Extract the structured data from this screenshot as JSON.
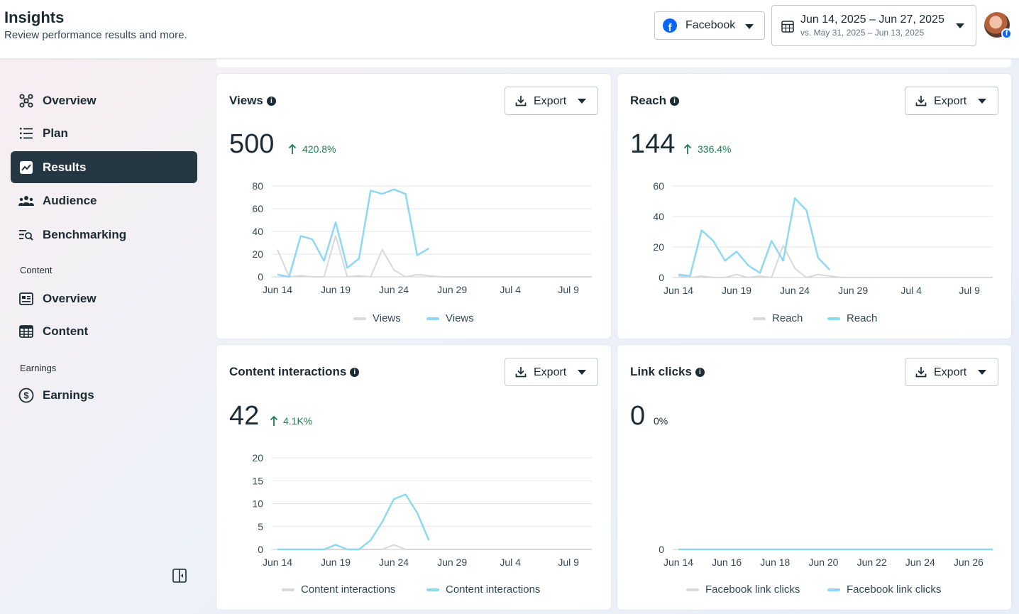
{
  "header": {
    "title": "Insights",
    "subtitle": "Review performance results and more.",
    "platform_select": "Facebook",
    "date_range": "Jun 14, 2025 – Jun 27, 2025",
    "compare_range": "vs. May 31, 2025 – Jun 13, 2025"
  },
  "sidebar": {
    "items": [
      {
        "label": "Overview",
        "icon": "overview-icon"
      },
      {
        "label": "Plan",
        "icon": "list-icon"
      },
      {
        "label": "Results",
        "icon": "trend-icon",
        "active": true
      },
      {
        "label": "Audience",
        "icon": "people-icon"
      },
      {
        "label": "Benchmarking",
        "icon": "benchmark-icon"
      }
    ],
    "content_label": "Content",
    "content_items": [
      {
        "label": "Overview",
        "icon": "card-icon"
      },
      {
        "label": "Content",
        "icon": "table-icon"
      }
    ],
    "earnings_label": "Earnings",
    "earnings_items": [
      {
        "label": "Earnings",
        "icon": "dollar-icon"
      }
    ]
  },
  "export_label": "Export",
  "colors": {
    "current": "#8fd8f3",
    "previous": "#d9d9d9",
    "accent_dark": "#263744",
    "up": "#1e7d4f"
  },
  "cards": {
    "views": {
      "title": "Views",
      "value": "500",
      "delta": "420.8%"
    },
    "reach": {
      "title": "Reach",
      "value": "144",
      "delta": "336.4%"
    },
    "interactions": {
      "title": "Content interactions",
      "value": "42",
      "delta": "4.1K%"
    },
    "link_clicks": {
      "title": "Link clicks",
      "value": "0",
      "delta": "0%"
    }
  },
  "chart_data": [
    {
      "type": "line",
      "x_tick_labels": [
        "Jun 14",
        "Jun 19",
        "Jun 24",
        "Jun 29",
        "Jul 4",
        "Jul 9"
      ],
      "x_tick_index": [
        0,
        5,
        10,
        15,
        20,
        25
      ],
      "num_points": 28,
      "ylim": [
        0,
        80
      ],
      "yticks": [
        0,
        20,
        40,
        60,
        80
      ],
      "series": [
        {
          "name": "Views",
          "role": "previous",
          "values": [
            24,
            0,
            1,
            0,
            0,
            36,
            0,
            1,
            0,
            24,
            6,
            0,
            2,
            1,
            0,
            0,
            0,
            0,
            0,
            0,
            0,
            0,
            0,
            0,
            0,
            0,
            0,
            0
          ]
        },
        {
          "name": "Views",
          "role": "current",
          "values": [
            2,
            0,
            36,
            33,
            14,
            48,
            8,
            16,
            76,
            73,
            77,
            73,
            19,
            25
          ]
        }
      ]
    },
    {
      "type": "line",
      "x_tick_labels": [
        "Jun 14",
        "Jun 19",
        "Jun 24",
        "Jun 29",
        "Jul 4",
        "Jul 9"
      ],
      "x_tick_index": [
        0,
        5,
        10,
        15,
        20,
        25
      ],
      "num_points": 28,
      "ylim": [
        0,
        60
      ],
      "yticks": [
        0,
        20,
        40,
        60
      ],
      "series": [
        {
          "name": "Reach",
          "role": "previous",
          "values": [
            1,
            0,
            1,
            0,
            0,
            2,
            0,
            1,
            0,
            21,
            6,
            0,
            2,
            1,
            0,
            0,
            0,
            0,
            0,
            0,
            0,
            0,
            0,
            0,
            0,
            0,
            0,
            0
          ]
        },
        {
          "name": "Reach",
          "role": "current",
          "values": [
            2,
            1,
            31,
            24,
            11,
            17,
            8,
            3,
            24,
            11,
            52,
            44,
            13,
            5
          ]
        }
      ]
    },
    {
      "type": "line",
      "x_tick_labels": [
        "Jun 14",
        "Jun 19",
        "Jun 24",
        "Jun 29",
        "Jul 4",
        "Jul 9"
      ],
      "x_tick_index": [
        0,
        5,
        10,
        15,
        20,
        25
      ],
      "num_points": 28,
      "ylim": [
        0,
        20
      ],
      "yticks": [
        0,
        5,
        10,
        15,
        20
      ],
      "series": [
        {
          "name": "Content interactions",
          "role": "previous",
          "values": [
            0,
            0,
            0,
            0,
            0,
            0,
            0,
            0,
            0,
            0,
            1,
            0,
            0,
            0,
            0,
            0,
            0,
            0,
            0,
            0,
            0,
            0,
            0,
            0,
            0,
            0,
            0,
            0
          ]
        },
        {
          "name": "Content interactions",
          "role": "current",
          "values": [
            0,
            0,
            0,
            0,
            0,
            1,
            0,
            0,
            2,
            6,
            11,
            12,
            8,
            2
          ]
        }
      ]
    },
    {
      "type": "line",
      "x_tick_labels": [
        "Jun 14",
        "Jun 16",
        "Jun 18",
        "Jun 20",
        "Jun 22",
        "Jun 24",
        "Jun 26"
      ],
      "x_tick_index": [
        0,
        2,
        4,
        6,
        8,
        10,
        12
      ],
      "num_points": 14,
      "ylim": [
        0,
        1
      ],
      "yticks": [
        0
      ],
      "series": [
        {
          "name": "Facebook link clicks",
          "role": "previous",
          "values": [
            0,
            0,
            0,
            0,
            0,
            0,
            0,
            0,
            0,
            0,
            0,
            0,
            0,
            0
          ]
        },
        {
          "name": "Facebook link clicks",
          "role": "current",
          "values": [
            0,
            0,
            0,
            0,
            0,
            0,
            0,
            0,
            0,
            0,
            0,
            0,
            0,
            0
          ]
        }
      ]
    }
  ]
}
